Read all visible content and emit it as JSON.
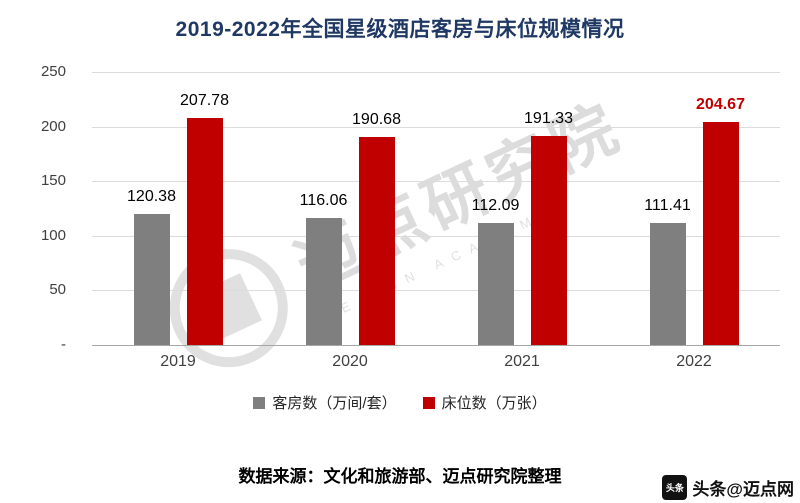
{
  "chart_data": {
    "type": "bar",
    "title": "2019-2022年全国星级酒店客房与床位规模情况",
    "categories": [
      "2019",
      "2020",
      "2021",
      "2022"
    ],
    "series": [
      {
        "name": "客房数（万间/套）",
        "color": "#7F7F7F",
        "values": [
          120.38,
          116.06,
          112.09,
          111.41
        ]
      },
      {
        "name": "床位数（万张）",
        "color": "#C00000",
        "values": [
          207.78,
          190.68,
          191.33,
          204.67
        ]
      }
    ],
    "ylim": [
      0,
      250
    ],
    "ytick_labels": [
      "250",
      "200",
      "150",
      "100",
      "50",
      "-"
    ],
    "grid": true,
    "legend_position": "bottom",
    "highlight": {
      "series": 1,
      "index": 3,
      "color": "#C00000"
    }
  },
  "watermark": {
    "text": "迈点研究院",
    "subtext": "MEADIN ACADEMY"
  },
  "source_note": "数据来源：文化和旅游部、迈点研究院整理",
  "badge": {
    "icon_label": "头条",
    "text": "头条@迈点网"
  }
}
